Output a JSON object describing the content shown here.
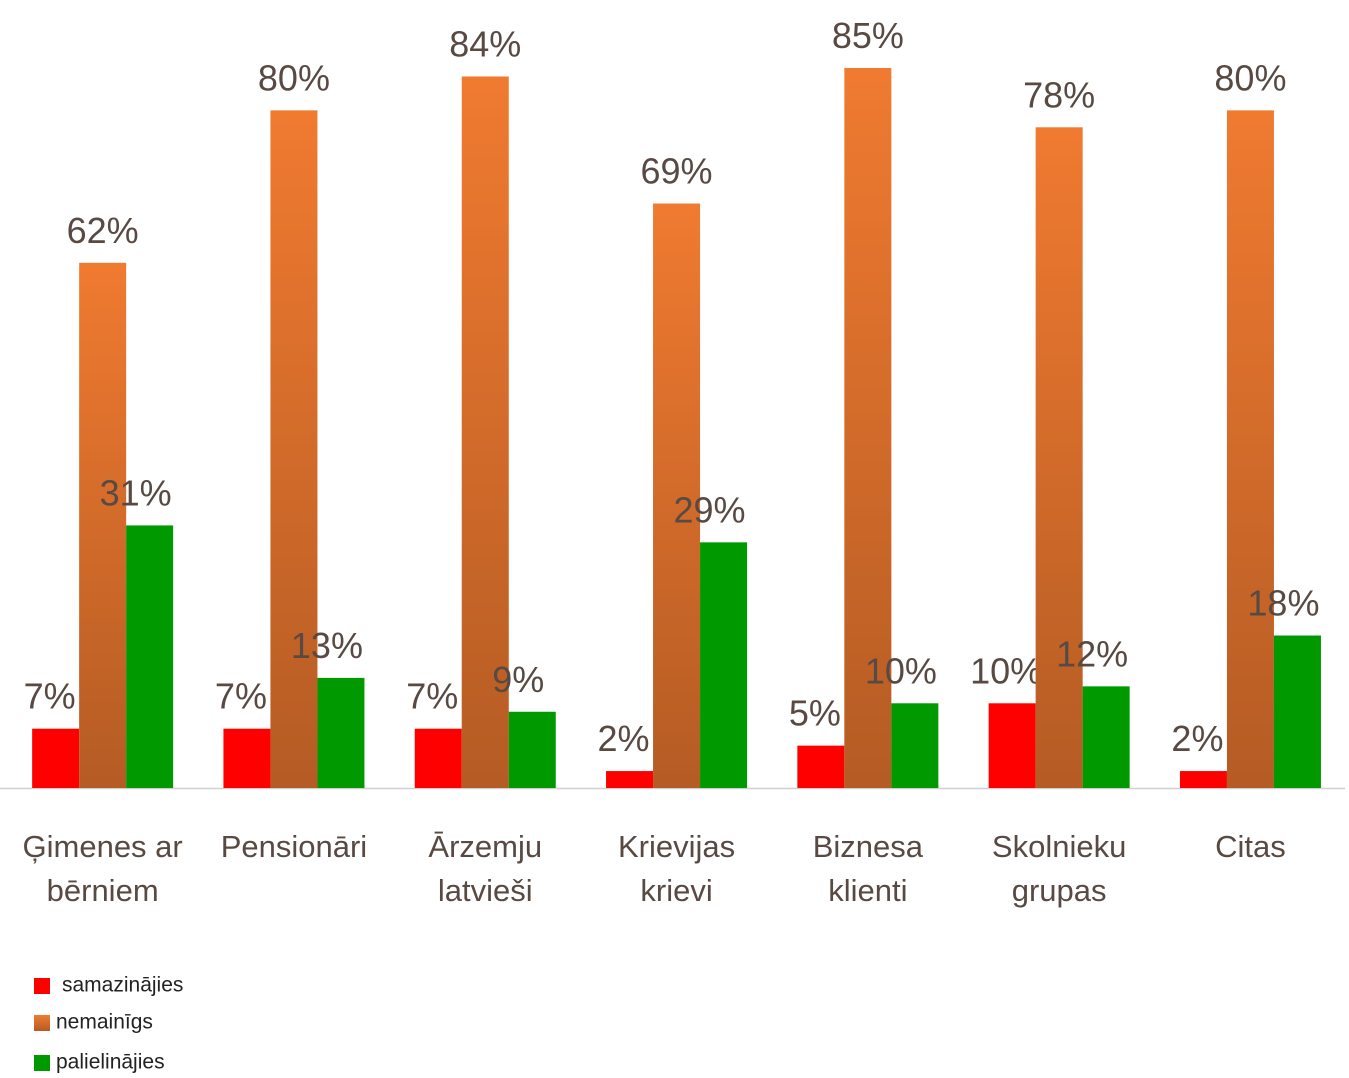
{
  "chart_data": {
    "type": "bar",
    "categories": [
      "Ģimenes ar bērniem",
      "Pensionāri",
      "Ārzemju latvieši",
      "Krievijas krievi",
      "Biznesa klienti",
      "Skolnieku grupas",
      "Citas"
    ],
    "series": [
      {
        "name": "samazinājies",
        "color": "#ff0000",
        "values": [
          7,
          7,
          7,
          2,
          5,
          10,
          2
        ],
        "value_labels": [
          "7%",
          "7%",
          "7%",
          "2%",
          "5%",
          "10%",
          "2%"
        ]
      },
      {
        "name": "nemainīgs",
        "color": "#f07a30",
        "gradient": true,
        "values": [
          62,
          80,
          84,
          69,
          85,
          78,
          80
        ],
        "value_labels": [
          "62%",
          "80%",
          "84%",
          "69%",
          "85%",
          "78%",
          "80%"
        ]
      },
      {
        "name": "palielinājies",
        "color": "#009900",
        "values": [
          31,
          13,
          9,
          29,
          10,
          12,
          18
        ],
        "value_labels": [
          "31%",
          "13%",
          "9%",
          "29%",
          "10%",
          "12%",
          "18%"
        ]
      }
    ],
    "legend": "bottom-left"
  }
}
